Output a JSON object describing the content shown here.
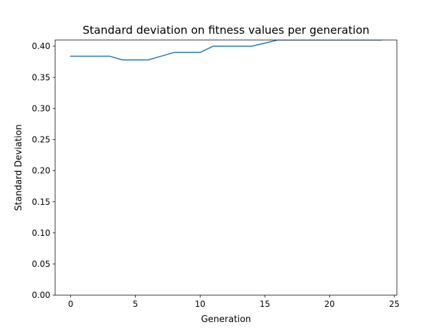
{
  "chart_data": {
    "type": "line",
    "title": "Standard deviation on fitness values per generation",
    "xlabel": "Generation",
    "ylabel": "Standard Deviation",
    "xlim": [
      -1.2,
      25.2
    ],
    "ylim": [
      0.0,
      0.41
    ],
    "xticks": [
      0,
      5,
      10,
      15,
      20,
      25
    ],
    "xtick_labels": [
      "0",
      "5",
      "10",
      "15",
      "20",
      "25"
    ],
    "yticks": [
      0.0,
      0.05,
      0.1,
      0.15,
      0.2,
      0.25,
      0.3,
      0.35,
      0.4
    ],
    "ytick_labels": [
      "0.00",
      "0.05",
      "0.10",
      "0.15",
      "0.20",
      "0.25",
      "0.30",
      "0.35",
      "0.40"
    ],
    "grid": false,
    "series": [
      {
        "color": "#1f77b4",
        "x": [
          0,
          1,
          2,
          3,
          4,
          5,
          6,
          7,
          8,
          9,
          10,
          11,
          12,
          13,
          14,
          15,
          16,
          17,
          18,
          19,
          20,
          21,
          22,
          23,
          24
        ],
        "y": [
          0.384,
          0.384,
          0.384,
          0.384,
          0.378,
          0.378,
          0.378,
          0.384,
          0.39,
          0.39,
          0.39,
          0.4,
          0.4,
          0.4,
          0.4,
          0.405,
          0.41,
          0.41,
          0.41,
          0.41,
          0.41,
          0.41,
          0.41,
          0.41,
          0.41
        ]
      }
    ]
  }
}
